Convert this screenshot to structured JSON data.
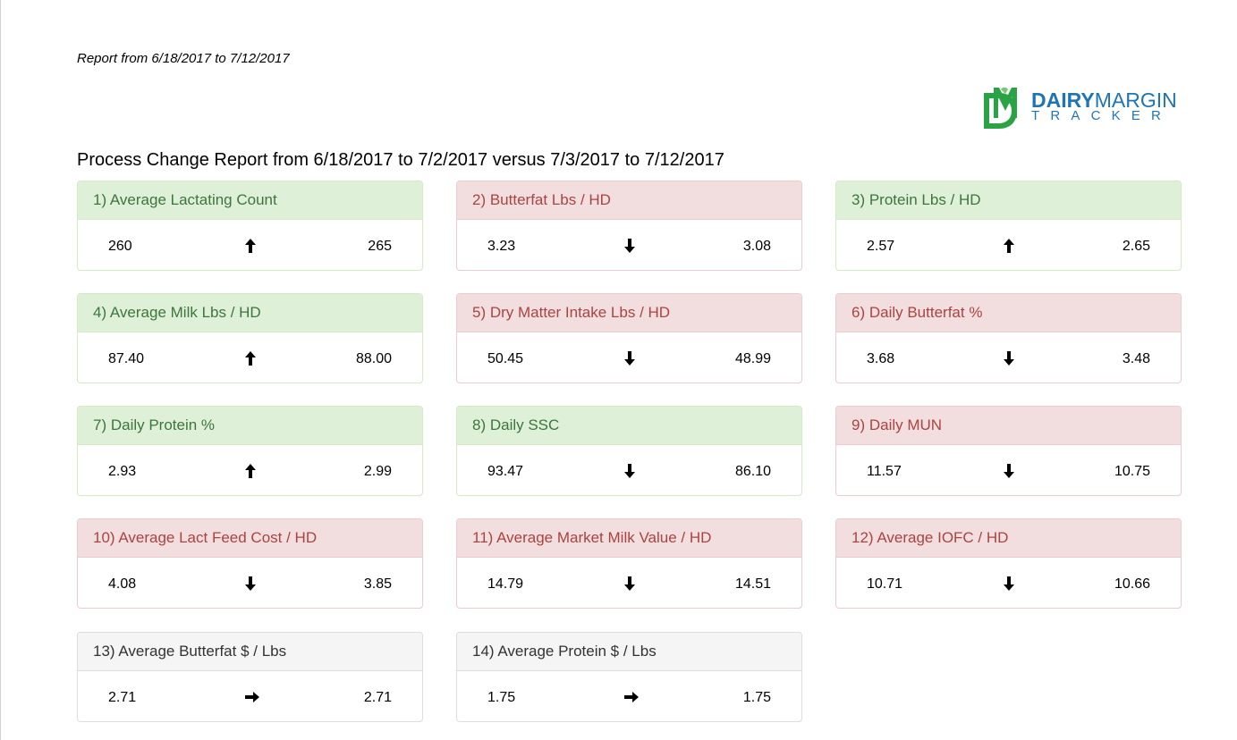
{
  "report_range": "Report from 6/18/2017 to 7/12/2017",
  "logo": {
    "line1_bold": "DAIRY",
    "line1_thin": "MARGIN",
    "line2": "TRACKER",
    "colors": {
      "green": "#2aa345",
      "blue": "#1f75b4"
    }
  },
  "main_title": "Process Change Report from 6/18/2017 to 7/2/2017 versus 7/3/2017 to 7/12/2017",
  "panels": [
    {
      "title": "1) Average Lactating Count",
      "before": "260",
      "after": "265",
      "trend": "up",
      "status": "success"
    },
    {
      "title": "2) Butterfat Lbs / HD",
      "before": "3.23",
      "after": "3.08",
      "trend": "down",
      "status": "danger"
    },
    {
      "title": "3) Protein Lbs / HD",
      "before": "2.57",
      "after": "2.65",
      "trend": "up",
      "status": "success"
    },
    {
      "title": "4) Average Milk Lbs / HD",
      "before": "87.40",
      "after": "88.00",
      "trend": "up",
      "status": "success"
    },
    {
      "title": "5) Dry Matter Intake Lbs / HD",
      "before": "50.45",
      "after": "48.99",
      "trend": "down",
      "status": "danger"
    },
    {
      "title": "6) Daily Butterfat %",
      "before": "3.68",
      "after": "3.48",
      "trend": "down",
      "status": "danger"
    },
    {
      "title": "7) Daily Protein %",
      "before": "2.93",
      "after": "2.99",
      "trend": "up",
      "status": "success"
    },
    {
      "title": "8) Daily SSC",
      "before": "93.47",
      "after": "86.10",
      "trend": "down",
      "status": "success"
    },
    {
      "title": "9) Daily MUN",
      "before": "11.57",
      "after": "10.75",
      "trend": "down",
      "status": "danger"
    },
    {
      "title": "10) Average Lact Feed Cost / HD",
      "before": "4.08",
      "after": "3.85",
      "trend": "down",
      "status": "danger"
    },
    {
      "title": "11) Average Market Milk Value / HD",
      "before": "14.79",
      "after": "14.51",
      "trend": "down",
      "status": "danger"
    },
    {
      "title": "12) Average IOFC / HD",
      "before": "10.71",
      "after": "10.66",
      "trend": "down",
      "status": "danger"
    },
    {
      "title": "13) Average Butterfat $ / Lbs",
      "before": "2.71",
      "after": "2.71",
      "trend": "flat",
      "status": "neutral"
    },
    {
      "title": "14) Average Protein $ / Lbs",
      "before": "1.75",
      "after": "1.75",
      "trend": "flat",
      "status": "neutral"
    }
  ]
}
